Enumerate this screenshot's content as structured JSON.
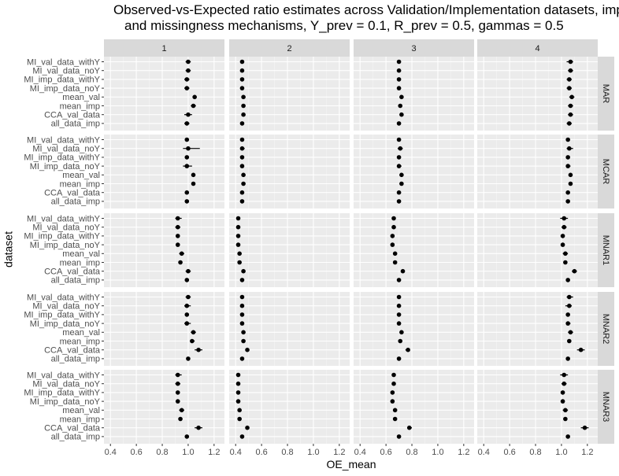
{
  "chart_data": {
    "type": "scatter",
    "title_line1": "Observed-vs-Expected ratio estimates across Validation/Implementation datasets, imputation methods",
    "title_line2": "and missingness mechanisms, Y_prev = 0.1, R_prev = 0.5, gammas = 0.5",
    "xlabel": "OE_mean",
    "ylabel": "dataset",
    "x_ticks": [
      "0.4",
      "0.6",
      "0.8",
      "1.0",
      "1.2"
    ],
    "xlim": [
      0.35,
      1.28
    ],
    "grid": true,
    "legend": "none",
    "datasets": [
      "MI_val_data_withY",
      "MI_val_data_noY",
      "MI_imp_data_withY",
      "MI_imp_data_noY",
      "mean_val",
      "mean_imp",
      "CCA_val_data",
      "all_data_imp"
    ],
    "column_facets": [
      "1",
      "2",
      "3",
      "4"
    ],
    "row_facets": [
      "MAR",
      "MCAR",
      "MNAR1",
      "MNAR2",
      "MNAR3"
    ],
    "panels": {
      "MAR": [
        [
          [
            1.0,
            0.98,
            1.02
          ],
          [
            1.0,
            0.98,
            1.02
          ],
          [
            0.99,
            0.97,
            1.01
          ],
          [
            0.99,
            0.97,
            1.01
          ],
          [
            1.05,
            1.04,
            1.06
          ],
          [
            1.04,
            1.02,
            1.06
          ],
          [
            1.0,
            0.97,
            1.03
          ],
          [
            0.99,
            0.97,
            1.01
          ]
        ],
        [
          [
            0.45,
            0.44,
            0.46
          ],
          [
            0.45,
            0.44,
            0.46
          ],
          [
            0.45,
            0.44,
            0.46
          ],
          [
            0.45,
            0.44,
            0.46
          ],
          [
            0.46,
            0.45,
            0.47
          ],
          [
            0.46,
            0.45,
            0.47
          ],
          [
            0.46,
            0.45,
            0.47
          ],
          [
            0.45,
            0.44,
            0.46
          ]
        ],
        [
          [
            0.7,
            0.69,
            0.71
          ],
          [
            0.7,
            0.69,
            0.71
          ],
          [
            0.7,
            0.69,
            0.71
          ],
          [
            0.7,
            0.69,
            0.71
          ],
          [
            0.72,
            0.71,
            0.73
          ],
          [
            0.71,
            0.7,
            0.72
          ],
          [
            0.72,
            0.71,
            0.73
          ],
          [
            0.7,
            0.69,
            0.71
          ]
        ],
        [
          [
            1.07,
            1.04,
            1.09
          ],
          [
            1.07,
            1.05,
            1.09
          ],
          [
            1.06,
            1.04,
            1.08
          ],
          [
            1.06,
            1.04,
            1.08
          ],
          [
            1.08,
            1.06,
            1.1
          ],
          [
            1.07,
            1.05,
            1.09
          ],
          [
            1.07,
            1.05,
            1.09
          ],
          [
            1.06,
            1.04,
            1.08
          ]
        ]
      ],
      "MCAR": [
        [
          [
            0.99,
            0.98,
            1.0
          ],
          [
            1.0,
            0.96,
            1.09
          ],
          [
            0.99,
            0.98,
            1.0
          ],
          [
            0.99,
            0.96,
            1.03
          ],
          [
            1.04,
            1.03,
            1.05
          ],
          [
            1.04,
            1.03,
            1.05
          ],
          [
            0.99,
            0.98,
            1.0
          ],
          [
            0.99,
            0.98,
            1.0
          ]
        ],
        [
          [
            0.45,
            0.44,
            0.46
          ],
          [
            0.45,
            0.44,
            0.47
          ],
          [
            0.45,
            0.44,
            0.46
          ],
          [
            0.45,
            0.44,
            0.46
          ],
          [
            0.46,
            0.45,
            0.47
          ],
          [
            0.46,
            0.45,
            0.47
          ],
          [
            0.45,
            0.44,
            0.46
          ],
          [
            0.45,
            0.44,
            0.46
          ]
        ],
        [
          [
            0.7,
            0.69,
            0.71
          ],
          [
            0.71,
            0.69,
            0.73
          ],
          [
            0.7,
            0.69,
            0.71
          ],
          [
            0.7,
            0.69,
            0.72
          ],
          [
            0.72,
            0.71,
            0.73
          ],
          [
            0.72,
            0.71,
            0.73
          ],
          [
            0.7,
            0.69,
            0.71
          ],
          [
            0.7,
            0.69,
            0.71
          ]
        ],
        [
          [
            1.05,
            1.04,
            1.06
          ],
          [
            1.06,
            1.04,
            1.09
          ],
          [
            1.05,
            1.04,
            1.06
          ],
          [
            1.05,
            1.04,
            1.07
          ],
          [
            1.07,
            1.06,
            1.08
          ],
          [
            1.07,
            1.06,
            1.08
          ],
          [
            1.05,
            1.04,
            1.06
          ],
          [
            1.05,
            1.04,
            1.06
          ]
        ]
      ],
      "MNAR1": [
        [
          [
            0.92,
            0.9,
            0.95
          ],
          [
            0.92,
            0.9,
            0.94
          ],
          [
            0.92,
            0.91,
            0.93
          ],
          [
            0.92,
            0.91,
            0.93
          ],
          [
            0.95,
            0.93,
            0.97
          ],
          [
            0.94,
            0.93,
            0.95
          ],
          [
            1.0,
            0.98,
            1.02
          ],
          [
            0.99,
            0.98,
            1.0
          ]
        ],
        [
          [
            0.42,
            0.41,
            0.43
          ],
          [
            0.42,
            0.41,
            0.43
          ],
          [
            0.42,
            0.41,
            0.43
          ],
          [
            0.42,
            0.41,
            0.43
          ],
          [
            0.43,
            0.42,
            0.44
          ],
          [
            0.43,
            0.42,
            0.44
          ],
          [
            0.46,
            0.45,
            0.47
          ],
          [
            0.45,
            0.44,
            0.46
          ]
        ],
        [
          [
            0.66,
            0.65,
            0.67
          ],
          [
            0.66,
            0.65,
            0.67
          ],
          [
            0.65,
            0.64,
            0.66
          ],
          [
            0.65,
            0.64,
            0.66
          ],
          [
            0.67,
            0.66,
            0.68
          ],
          [
            0.67,
            0.66,
            0.68
          ],
          [
            0.73,
            0.72,
            0.74
          ],
          [
            0.7,
            0.69,
            0.71
          ]
        ],
        [
          [
            1.02,
            0.99,
            1.05
          ],
          [
            1.02,
            1.0,
            1.04
          ],
          [
            1.01,
            1.0,
            1.02
          ],
          [
            1.01,
            1.0,
            1.02
          ],
          [
            1.03,
            1.01,
            1.05
          ],
          [
            1.03,
            1.02,
            1.04
          ],
          [
            1.1,
            1.08,
            1.12
          ],
          [
            1.05,
            1.04,
            1.06
          ]
        ]
      ],
      "MNAR2": [
        [
          [
            1.0,
            0.98,
            1.02
          ],
          [
            0.99,
            0.97,
            1.02
          ],
          [
            0.99,
            0.98,
            1.0
          ],
          [
            0.99,
            0.97,
            1.02
          ],
          [
            1.04,
            1.02,
            1.06
          ],
          [
            1.03,
            1.02,
            1.05
          ],
          [
            1.08,
            1.05,
            1.11
          ],
          [
            1.0,
            0.99,
            1.01
          ]
        ],
        [
          [
            0.45,
            0.44,
            0.46
          ],
          [
            0.45,
            0.44,
            0.46
          ],
          [
            0.45,
            0.44,
            0.46
          ],
          [
            0.45,
            0.44,
            0.46
          ],
          [
            0.46,
            0.45,
            0.47
          ],
          [
            0.46,
            0.45,
            0.47
          ],
          [
            0.49,
            0.48,
            0.5
          ],
          [
            0.45,
            0.44,
            0.46
          ]
        ],
        [
          [
            0.7,
            0.69,
            0.71
          ],
          [
            0.7,
            0.69,
            0.71
          ],
          [
            0.7,
            0.69,
            0.71
          ],
          [
            0.7,
            0.69,
            0.71
          ],
          [
            0.72,
            0.71,
            0.73
          ],
          [
            0.71,
            0.7,
            0.72
          ],
          [
            0.77,
            0.75,
            0.78
          ],
          [
            0.7,
            0.69,
            0.71
          ]
        ],
        [
          [
            1.06,
            1.04,
            1.09
          ],
          [
            1.06,
            1.03,
            1.08
          ],
          [
            1.05,
            1.04,
            1.06
          ],
          [
            1.05,
            1.04,
            1.07
          ],
          [
            1.07,
            1.05,
            1.09
          ],
          [
            1.06,
            1.05,
            1.07
          ],
          [
            1.15,
            1.12,
            1.18
          ],
          [
            1.05,
            1.04,
            1.06
          ]
        ]
      ],
      "MNAR3": [
        [
          [
            0.92,
            0.9,
            0.95
          ],
          [
            0.92,
            0.9,
            0.94
          ],
          [
            0.92,
            0.91,
            0.93
          ],
          [
            0.92,
            0.91,
            0.93
          ],
          [
            0.95,
            0.93,
            0.97
          ],
          [
            0.94,
            0.93,
            0.95
          ],
          [
            1.08,
            1.05,
            1.11
          ],
          [
            0.99,
            0.98,
            1.0
          ]
        ],
        [
          [
            0.42,
            0.41,
            0.43
          ],
          [
            0.42,
            0.41,
            0.43
          ],
          [
            0.42,
            0.41,
            0.43
          ],
          [
            0.42,
            0.41,
            0.43
          ],
          [
            0.43,
            0.42,
            0.44
          ],
          [
            0.43,
            0.42,
            0.44
          ],
          [
            0.49,
            0.48,
            0.5
          ],
          [
            0.45,
            0.44,
            0.46
          ]
        ],
        [
          [
            0.66,
            0.65,
            0.67
          ],
          [
            0.66,
            0.65,
            0.67
          ],
          [
            0.65,
            0.64,
            0.66
          ],
          [
            0.65,
            0.64,
            0.66
          ],
          [
            0.67,
            0.66,
            0.68
          ],
          [
            0.67,
            0.66,
            0.68
          ],
          [
            0.78,
            0.77,
            0.8
          ],
          [
            0.7,
            0.69,
            0.71
          ]
        ],
        [
          [
            1.02,
            0.99,
            1.05
          ],
          [
            1.02,
            1.0,
            1.04
          ],
          [
            1.01,
            1.0,
            1.02
          ],
          [
            1.01,
            1.0,
            1.02
          ],
          [
            1.03,
            1.01,
            1.05
          ],
          [
            1.03,
            1.02,
            1.04
          ],
          [
            1.18,
            1.15,
            1.21
          ],
          [
            1.05,
            1.04,
            1.06
          ]
        ]
      ]
    }
  }
}
